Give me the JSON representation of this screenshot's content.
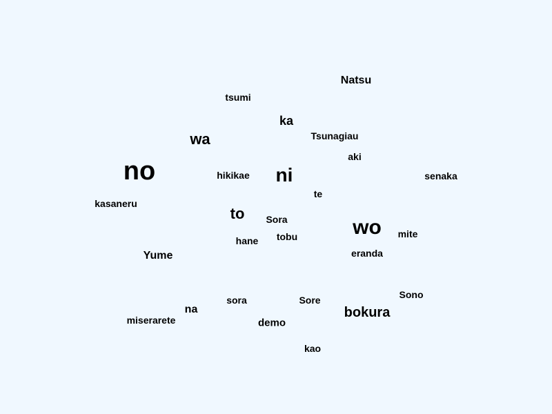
{
  "words": [
    {
      "text": "Natsu"
    },
    {
      "text": "tsumi"
    },
    {
      "text": "ka"
    },
    {
      "text": "wa"
    },
    {
      "text": "Tsunagiau"
    },
    {
      "text": "aki"
    },
    {
      "text": "no"
    },
    {
      "text": "hikikae"
    },
    {
      "text": "ni"
    },
    {
      "text": "senaka"
    },
    {
      "text": "te"
    },
    {
      "text": "kasaneru"
    },
    {
      "text": "to"
    },
    {
      "text": "Sora"
    },
    {
      "text": "wo"
    },
    {
      "text": "mite"
    },
    {
      "text": "hane"
    },
    {
      "text": "tobu"
    },
    {
      "text": "Yume"
    },
    {
      "text": "eranda"
    },
    {
      "text": "Sono"
    },
    {
      "text": "sora"
    },
    {
      "text": "Sore"
    },
    {
      "text": "na"
    },
    {
      "text": "bokura"
    },
    {
      "text": "miserarete"
    },
    {
      "text": "demo"
    },
    {
      "text": "kao"
    }
  ]
}
